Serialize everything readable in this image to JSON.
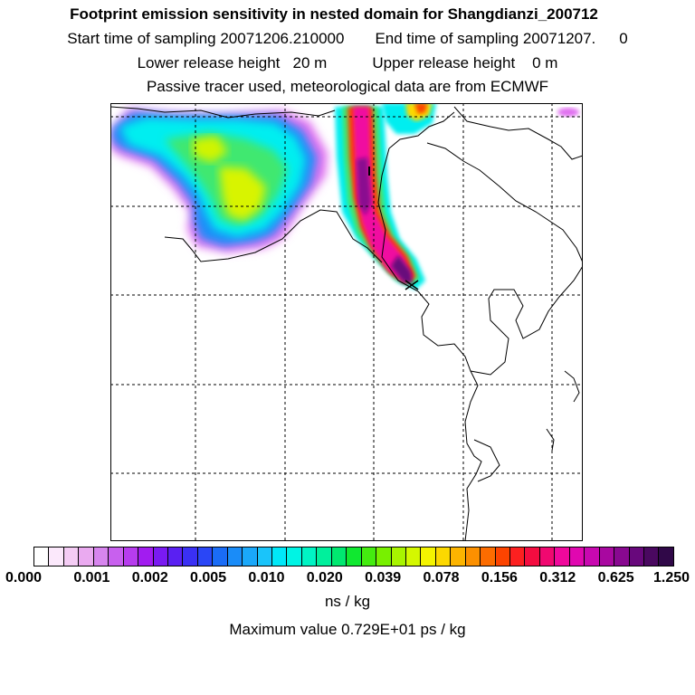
{
  "title": "Footprint emission sensitivity in nested domain for Shangdianzi_200712",
  "sampling": {
    "start_label": "Start time of sampling 20071206.210000",
    "end_label": "End time of sampling 20071207.",
    "end_value": "0"
  },
  "release": {
    "lower": "Lower release height   20 m",
    "upper": "Upper release height    0 m"
  },
  "tracer_note": "Passive tracer used, meteorological data are from ECMWF",
  "colorbar": {
    "ticks": [
      "0.000",
      "0.001",
      "0.002",
      "0.005",
      "0.010",
      "0.020",
      "0.039",
      "0.078",
      "0.156",
      "0.312",
      "0.625",
      "1.250"
    ],
    "colors": [
      "#ffffff",
      "#fbe8fb",
      "#f4ccf4",
      "#eaaaf0",
      "#d785ee",
      "#c860ee",
      "#b73cee",
      "#a21cf0",
      "#7a1af2",
      "#5a20f2",
      "#3a30f4",
      "#2a46f6",
      "#1a6cf6",
      "#1a8cf8",
      "#1aa8fa",
      "#1ac4fa",
      "#00e8f8",
      "#00f4e4",
      "#00f4c4",
      "#00f09c",
      "#00e870",
      "#10e830",
      "#44ec10",
      "#78f000",
      "#a8f400",
      "#d4f800",
      "#f4f400",
      "#fcd800",
      "#fcb400",
      "#fc9000",
      "#fc6c00",
      "#fc4400",
      "#fc2020",
      "#f40c40",
      "#f00870",
      "#f0089c",
      "#e008b0",
      "#c808b0",
      "#a808a0",
      "#880890",
      "#68087c",
      "#4a0860",
      "#300848"
    ],
    "unit": "ns / kg"
  },
  "max_value": "Maximum value  0.729E+01 ps / kg"
}
